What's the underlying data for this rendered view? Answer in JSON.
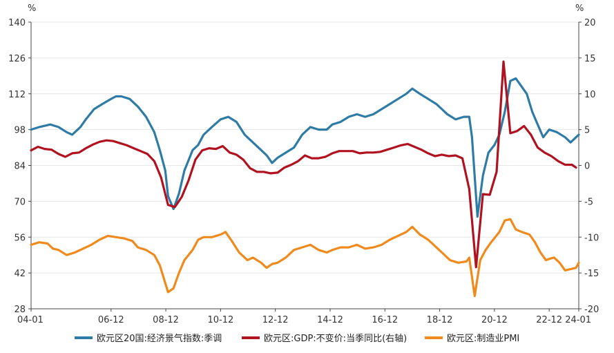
{
  "chart_data": {
    "type": "line",
    "title": "",
    "left_axis": {
      "unit": "%",
      "min": 28,
      "max": 140,
      "ticks": [
        28,
        42,
        56,
        70,
        84,
        98,
        112,
        126,
        140
      ]
    },
    "right_axis": {
      "unit": "%",
      "min": -20,
      "max": 20,
      "ticks": [
        -20,
        -15,
        -10,
        -5,
        0,
        5,
        10,
        15,
        20
      ]
    },
    "x_range": [
      2004.0,
      2024.0
    ],
    "x_ticks": [
      {
        "t": 2004.0,
        "label": "04-01"
      },
      {
        "t": 2006.92,
        "label": "06-12"
      },
      {
        "t": 2008.92,
        "label": "08-12"
      },
      {
        "t": 2010.92,
        "label": "10-12"
      },
      {
        "t": 2012.92,
        "label": "12-12"
      },
      {
        "t": 2014.92,
        "label": "14-12"
      },
      {
        "t": 2016.92,
        "label": "16-12"
      },
      {
        "t": 2018.92,
        "label": "18-12"
      },
      {
        "t": 2020.92,
        "label": "20-12"
      },
      {
        "t": 2022.92,
        "label": "22-12"
      },
      {
        "t": 2024.0,
        "label": "24-01"
      }
    ],
    "legend_position": "bottom",
    "series": [
      {
        "name": "欧元区20国:经济景气指数:季调",
        "axis": "left",
        "color": "#2e7ba6",
        "points": [
          [
            2004.0,
            98
          ],
          [
            2004.3,
            99
          ],
          [
            2004.7,
            100
          ],
          [
            2005.0,
            99
          ],
          [
            2005.3,
            97
          ],
          [
            2005.5,
            96
          ],
          [
            2005.8,
            99
          ],
          [
            2006.0,
            102
          ],
          [
            2006.3,
            106
          ],
          [
            2006.6,
            108
          ],
          [
            2006.92,
            110
          ],
          [
            2007.1,
            111
          ],
          [
            2007.3,
            111
          ],
          [
            2007.6,
            110
          ],
          [
            2007.9,
            107
          ],
          [
            2008.2,
            103
          ],
          [
            2008.5,
            97
          ],
          [
            2008.7,
            90
          ],
          [
            2008.9,
            82
          ],
          [
            2009.0,
            72
          ],
          [
            2009.2,
            67
          ],
          [
            2009.4,
            73
          ],
          [
            2009.6,
            82
          ],
          [
            2009.9,
            90
          ],
          [
            2010.1,
            92
          ],
          [
            2010.3,
            96
          ],
          [
            2010.6,
            99
          ],
          [
            2010.92,
            102
          ],
          [
            2011.2,
            103
          ],
          [
            2011.5,
            101
          ],
          [
            2011.8,
            96
          ],
          [
            2012.0,
            94
          ],
          [
            2012.3,
            91
          ],
          [
            2012.6,
            88
          ],
          [
            2012.8,
            85
          ],
          [
            2013.0,
            87
          ],
          [
            2013.3,
            89
          ],
          [
            2013.6,
            91
          ],
          [
            2013.9,
            96
          ],
          [
            2014.2,
            99
          ],
          [
            2014.5,
            98
          ],
          [
            2014.8,
            98
          ],
          [
            2015.0,
            100
          ],
          [
            2015.3,
            101
          ],
          [
            2015.6,
            103
          ],
          [
            2015.9,
            104
          ],
          [
            2016.2,
            103
          ],
          [
            2016.5,
            104
          ],
          [
            2016.8,
            106
          ],
          [
            2017.1,
            108
          ],
          [
            2017.4,
            110
          ],
          [
            2017.7,
            112
          ],
          [
            2017.92,
            114
          ],
          [
            2018.2,
            112
          ],
          [
            2018.5,
            110
          ],
          [
            2018.8,
            108
          ],
          [
            2019.0,
            106
          ],
          [
            2019.2,
            104
          ],
          [
            2019.5,
            102
          ],
          [
            2019.8,
            103
          ],
          [
            2020.0,
            103
          ],
          [
            2020.1,
            95
          ],
          [
            2020.3,
            64
          ],
          [
            2020.5,
            80
          ],
          [
            2020.7,
            89
          ],
          [
            2020.92,
            92
          ],
          [
            2021.1,
            96
          ],
          [
            2021.3,
            105
          ],
          [
            2021.5,
            117
          ],
          [
            2021.7,
            118
          ],
          [
            2021.9,
            115
          ],
          [
            2022.1,
            112
          ],
          [
            2022.3,
            105
          ],
          [
            2022.5,
            100
          ],
          [
            2022.7,
            95
          ],
          [
            2022.92,
            98
          ],
          [
            2023.2,
            97
          ],
          [
            2023.5,
            95
          ],
          [
            2023.7,
            93
          ],
          [
            2023.9,
            95
          ],
          [
            2024.0,
            96
          ]
        ]
      },
      {
        "name": "欧元区:GDP:不变价:当季同比(右轴)",
        "axis": "right",
        "color": "#b0121f",
        "points": [
          [
            2004.0,
            2.1
          ],
          [
            2004.25,
            2.6
          ],
          [
            2004.5,
            2.3
          ],
          [
            2004.75,
            2.2
          ],
          [
            2005.0,
            1.6
          ],
          [
            2005.25,
            1.2
          ],
          [
            2005.5,
            1.7
          ],
          [
            2005.75,
            1.8
          ],
          [
            2006.0,
            2.4
          ],
          [
            2006.25,
            2.9
          ],
          [
            2006.5,
            3.3
          ],
          [
            2006.75,
            3.5
          ],
          [
            2007.0,
            3.4
          ],
          [
            2007.25,
            3.1
          ],
          [
            2007.5,
            2.8
          ],
          [
            2007.75,
            2.4
          ],
          [
            2008.0,
            2.0
          ],
          [
            2008.25,
            1.6
          ],
          [
            2008.5,
            0.6
          ],
          [
            2008.75,
            -1.7
          ],
          [
            2009.0,
            -5.5
          ],
          [
            2009.25,
            -5.8
          ],
          [
            2009.5,
            -4.4
          ],
          [
            2009.75,
            -2.1
          ],
          [
            2010.0,
            0.8
          ],
          [
            2010.25,
            2.1
          ],
          [
            2010.5,
            2.4
          ],
          [
            2010.75,
            2.3
          ],
          [
            2011.0,
            2.7
          ],
          [
            2011.25,
            1.8
          ],
          [
            2011.5,
            1.5
          ],
          [
            2011.75,
            0.8
          ],
          [
            2012.0,
            -0.4
          ],
          [
            2012.25,
            -0.9
          ],
          [
            2012.5,
            -0.9
          ],
          [
            2012.75,
            -1.1
          ],
          [
            2013.0,
            -1.0
          ],
          [
            2013.25,
            -0.3
          ],
          [
            2013.5,
            0.1
          ],
          [
            2013.75,
            0.6
          ],
          [
            2014.0,
            1.4
          ],
          [
            2014.25,
            1.0
          ],
          [
            2014.5,
            1.0
          ],
          [
            2014.75,
            1.2
          ],
          [
            2015.0,
            1.7
          ],
          [
            2015.25,
            2.0
          ],
          [
            2015.5,
            2.0
          ],
          [
            2015.75,
            2.0
          ],
          [
            2016.0,
            1.7
          ],
          [
            2016.25,
            1.8
          ],
          [
            2016.5,
            1.8
          ],
          [
            2016.75,
            1.9
          ],
          [
            2017.0,
            2.2
          ],
          [
            2017.25,
            2.5
          ],
          [
            2017.5,
            2.8
          ],
          [
            2017.75,
            3.0
          ],
          [
            2018.0,
            2.6
          ],
          [
            2018.25,
            2.2
          ],
          [
            2018.5,
            1.7
          ],
          [
            2018.75,
            1.3
          ],
          [
            2019.0,
            1.5
          ],
          [
            2019.25,
            1.3
          ],
          [
            2019.5,
            1.4
          ],
          [
            2019.75,
            1.0
          ],
          [
            2020.0,
            -3.3
          ],
          [
            2020.25,
            -14.2
          ],
          [
            2020.5,
            -4.0
          ],
          [
            2020.75,
            -4.1
          ],
          [
            2021.0,
            -0.9
          ],
          [
            2021.25,
            14.5
          ],
          [
            2021.5,
            4.5
          ],
          [
            2021.75,
            4.8
          ],
          [
            2022.0,
            5.5
          ],
          [
            2022.25,
            4.3
          ],
          [
            2022.5,
            2.5
          ],
          [
            2022.75,
            1.8
          ],
          [
            2023.0,
            1.3
          ],
          [
            2023.25,
            0.6
          ],
          [
            2023.5,
            0.1
          ],
          [
            2023.75,
            0.1
          ],
          [
            2023.9,
            -0.3
          ]
        ]
      },
      {
        "name": "欧元区:制造业PMI",
        "axis": "left",
        "color": "#f08a1c",
        "points": [
          [
            2004.0,
            53
          ],
          [
            2004.3,
            54
          ],
          [
            2004.6,
            53.5
          ],
          [
            2004.8,
            51.5
          ],
          [
            2005.0,
            51
          ],
          [
            2005.3,
            49
          ],
          [
            2005.6,
            50
          ],
          [
            2005.9,
            51.5
          ],
          [
            2006.2,
            53
          ],
          [
            2006.5,
            55
          ],
          [
            2006.8,
            56.5
          ],
          [
            2007.1,
            56
          ],
          [
            2007.4,
            55.5
          ],
          [
            2007.7,
            54.5
          ],
          [
            2007.9,
            52
          ],
          [
            2008.2,
            51
          ],
          [
            2008.5,
            49
          ],
          [
            2008.7,
            45
          ],
          [
            2008.9,
            38
          ],
          [
            2009.0,
            34.5
          ],
          [
            2009.2,
            36
          ],
          [
            2009.4,
            42
          ],
          [
            2009.6,
            47
          ],
          [
            2009.9,
            51
          ],
          [
            2010.1,
            55
          ],
          [
            2010.3,
            56
          ],
          [
            2010.6,
            56
          ],
          [
            2010.92,
            57
          ],
          [
            2011.1,
            58
          ],
          [
            2011.3,
            55
          ],
          [
            2011.6,
            50
          ],
          [
            2011.9,
            47
          ],
          [
            2012.1,
            48
          ],
          [
            2012.4,
            46
          ],
          [
            2012.6,
            44
          ],
          [
            2012.8,
            45.5
          ],
          [
            2013.0,
            46
          ],
          [
            2013.3,
            48
          ],
          [
            2013.6,
            51
          ],
          [
            2013.9,
            52
          ],
          [
            2014.2,
            53
          ],
          [
            2014.5,
            51
          ],
          [
            2014.8,
            50
          ],
          [
            2015.0,
            51
          ],
          [
            2015.3,
            52
          ],
          [
            2015.6,
            52
          ],
          [
            2015.9,
            53
          ],
          [
            2016.2,
            51.5
          ],
          [
            2016.5,
            52
          ],
          [
            2016.8,
            53
          ],
          [
            2017.1,
            55
          ],
          [
            2017.4,
            56.5
          ],
          [
            2017.7,
            58
          ],
          [
            2017.92,
            60
          ],
          [
            2018.2,
            57
          ],
          [
            2018.5,
            55
          ],
          [
            2018.8,
            52
          ],
          [
            2019.0,
            50
          ],
          [
            2019.3,
            47
          ],
          [
            2019.6,
            46
          ],
          [
            2019.9,
            46.5
          ],
          [
            2020.0,
            48
          ],
          [
            2020.2,
            33
          ],
          [
            2020.4,
            47
          ],
          [
            2020.6,
            51
          ],
          [
            2020.8,
            54
          ],
          [
            2021.1,
            58
          ],
          [
            2021.3,
            62.5
          ],
          [
            2021.5,
            63
          ],
          [
            2021.7,
            59
          ],
          [
            2021.92,
            58
          ],
          [
            2022.2,
            57
          ],
          [
            2022.4,
            54
          ],
          [
            2022.6,
            50
          ],
          [
            2022.8,
            47
          ],
          [
            2022.92,
            47.5
          ],
          [
            2023.1,
            48
          ],
          [
            2023.3,
            46
          ],
          [
            2023.5,
            43
          ],
          [
            2023.7,
            43.5
          ],
          [
            2023.9,
            44
          ],
          [
            2024.0,
            46
          ]
        ]
      }
    ]
  }
}
